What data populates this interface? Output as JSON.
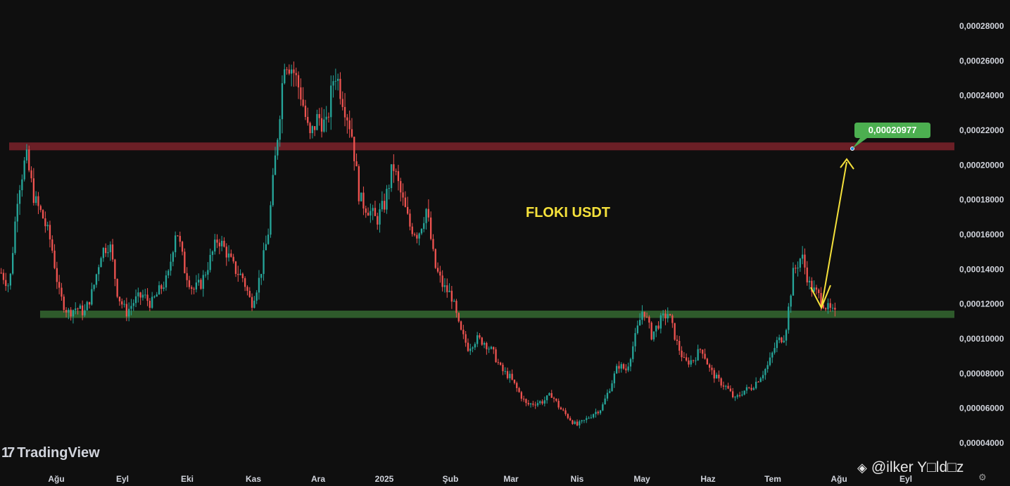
{
  "app": {
    "brand": "TradingView",
    "watermark": "@ilker Y□ld□z",
    "watermark_icon": "binance-icon",
    "settings_icon": "gear-icon"
  },
  "chart_data": {
    "type": "candlestick",
    "title": "FLOKI USDT",
    "colors": {
      "up": "#26a69a",
      "down": "#ef5350",
      "background": "#0f0f0f",
      "resistance_zone": "#6b1f26",
      "support_zone": "#2e5a2b",
      "annotation": "#f5e13b",
      "badge": "#4caf50"
    },
    "ylim": [
      4e-05,
      0.00029
    ],
    "y_ticks": [
      "0,00004000",
      "0,00006000",
      "0,00008000",
      "0,00010000",
      "0,00012000",
      "0,00014000",
      "0,00016000",
      "0,00018000",
      "0,00020000",
      "0,00022000",
      "0,00024000",
      "0,00026000",
      "0,00028000"
    ],
    "x_ticks": [
      "Ağu",
      "Eyl",
      "Eki",
      "Kas",
      "Ara",
      "2025",
      "Şub",
      "Mar",
      "Nis",
      "May",
      "Haz",
      "Tem",
      "Ağu",
      "Eyl"
    ],
    "resistance_zone": {
      "low": 0.0002085,
      "high": 0.000213
    },
    "support_zone": {
      "low": 0.000112,
      "high": 0.0001162
    },
    "target_label": "0,00020977",
    "target_value": 0.00020977,
    "approx_close_path": [
      0.000138,
      0.00013,
      0.000185,
      0.000205,
      0.00018,
      0.00017,
      0.000155,
      0.000125,
      0.000115,
      0.000118,
      0.000115,
      0.000128,
      0.00015,
      0.000155,
      0.000125,
      0.000115,
      0.000122,
      0.000125,
      0.00012,
      0.000128,
      0.000135,
      0.000165,
      0.00014,
      0.000128,
      0.000132,
      0.000145,
      0.000158,
      0.00015,
      0.00014,
      0.000135,
      0.00012,
      0.000135,
      0.00016,
      0.00021,
      0.000262,
      0.000255,
      0.00024,
      0.000215,
      0.000228,
      0.000222,
      0.000255,
      0.000238,
      0.00022,
      0.00018,
      0.000175,
      0.000168,
      0.000178,
      0.0002,
      0.000182,
      0.000165,
      0.00016,
      0.000175,
      0.000142,
      0.00013,
      0.000125,
      0.000105,
      9.5e-05,
      0.0001,
      9.8e-05,
      9.2e-05,
      8.2e-05,
      7.8e-05,
      7e-05,
      6.2e-05,
      6.3e-05,
      6.4e-05,
      6.8e-05,
      6e-05,
      5.5e-05,
      5e-05,
      5.3e-05,
      5.7e-05,
      6e-05,
      7.2e-05,
      8.5e-05,
      8.2e-05,
      0.0001,
      0.000118,
      0.000102,
      0.00011,
      0.000115,
      9.8e-05,
      8.6e-05,
      8.8e-05,
      9.5e-05,
      8.2e-05,
      7.6e-05,
      7.2e-05,
      6.5e-05,
      7e-05,
      7.2e-05,
      7.8e-05,
      8.5e-05,
      9.8e-05,
      0.000102,
      0.000138,
      0.000148,
      0.00013,
      0.000125,
      0.000118,
      0.000114
    ]
  }
}
